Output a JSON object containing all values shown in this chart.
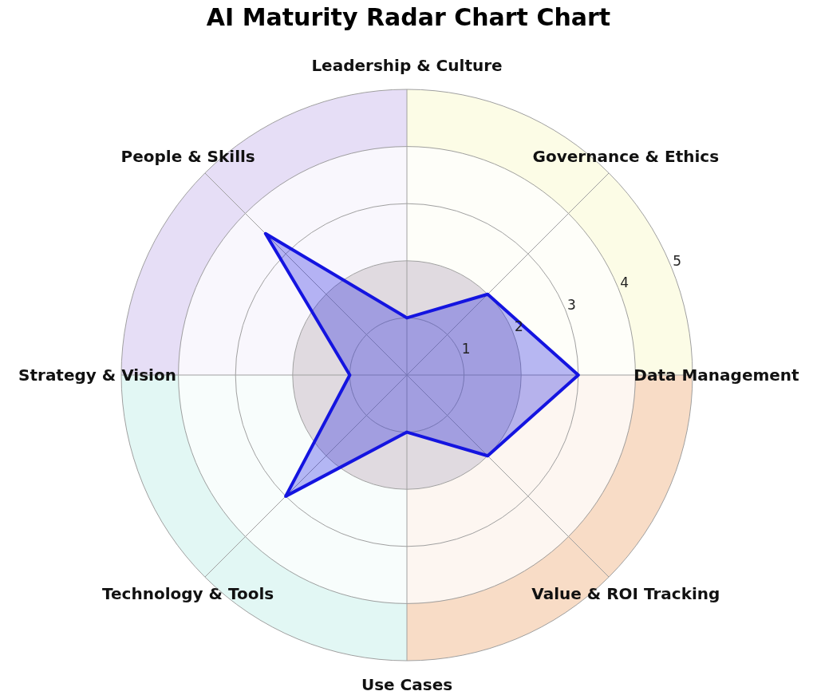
{
  "chart_data": {
    "type": "radar",
    "title": "AI Maturity Radar Chart Chart",
    "categories": [
      "Leadership & Culture",
      "Governance & Ethics",
      "Data Management",
      "Value & ROI Tracking",
      "Use Cases",
      "Technology & Tools",
      "Strategy & Vision",
      "People & Skills"
    ],
    "series": [
      {
        "color": "#1414e0",
        "values": [
          1,
          2,
          3,
          2,
          1,
          3,
          1,
          3.5
        ]
      }
    ],
    "ylim": [
      0,
      5
    ],
    "yticks": [
      1,
      2,
      3,
      4,
      5
    ],
    "grid": true
  }
}
